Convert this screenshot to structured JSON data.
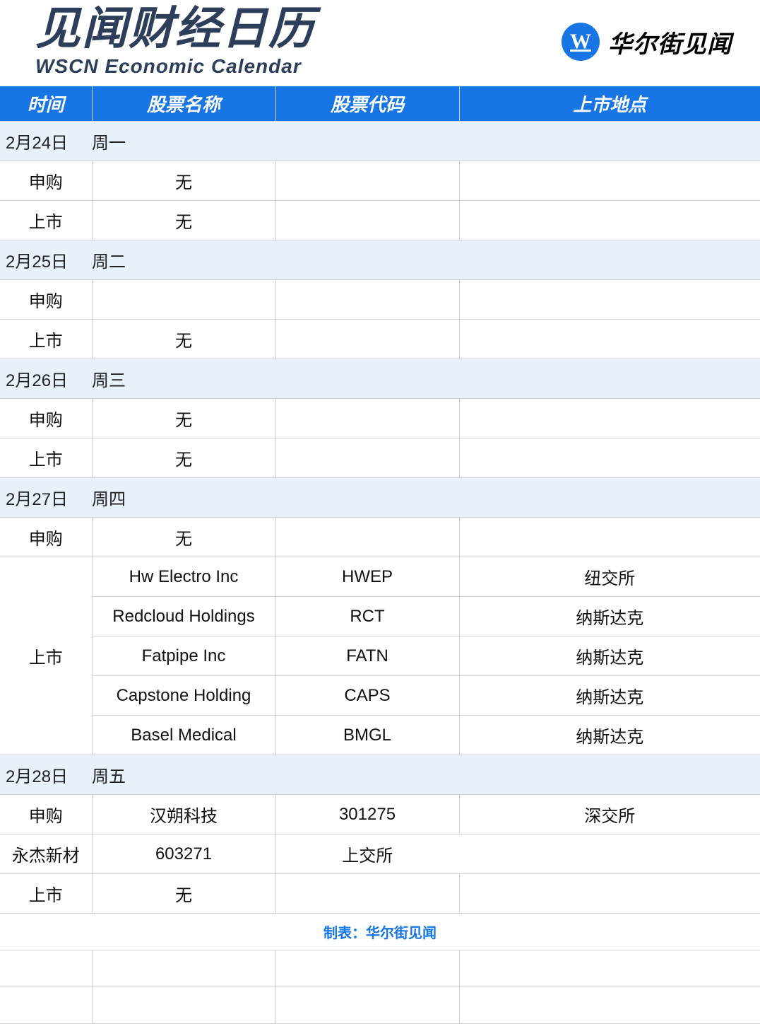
{
  "header": {
    "title_cn": "见闻财经日历",
    "title_en": "WSCN Economic Calendar",
    "brand": "华尔街见闻",
    "logo_letter": "W"
  },
  "columns": [
    "时间",
    "股票名称",
    "股票代码",
    "上市地点"
  ],
  "footer": "制表：华尔街见闻",
  "colors": {
    "header_bg": "#1775e5",
    "header_text": "#ffffff",
    "date_row_bg": "#e8f0fa",
    "border": "#d0d4da",
    "title": "#2d3e5a"
  },
  "days": [
    {
      "date": "2月24日",
      "weekday": "周一",
      "rows": [
        {
          "type": "申购",
          "name": "无",
          "code": "",
          "loc": ""
        },
        {
          "type": "上市",
          "name": "无",
          "code": "",
          "loc": ""
        }
      ]
    },
    {
      "date": "2月25日",
      "weekday": "周二",
      "rows": [
        {
          "type": "申购",
          "name": "",
          "code": "",
          "loc": ""
        },
        {
          "type": "上市",
          "name": "无",
          "code": "",
          "loc": ""
        }
      ]
    },
    {
      "date": "2月26日",
      "weekday": "周三",
      "rows": [
        {
          "type": "申购",
          "name": "无",
          "code": "",
          "loc": ""
        },
        {
          "type": "上市",
          "name": "无",
          "code": "",
          "loc": ""
        }
      ]
    },
    {
      "date": "2月27日",
      "weekday": "周四",
      "rows": [
        {
          "type": "申购",
          "name": "无",
          "code": "",
          "loc": ""
        },
        {
          "type": "上市",
          "name": "Hw Electro Inc",
          "code": "HWEP",
          "loc": "纽交所",
          "span": 5
        },
        {
          "type": "",
          "name": "Redcloud Holdings",
          "code": "RCT",
          "loc": "纳斯达克"
        },
        {
          "type": "",
          "name": "Fatpipe Inc",
          "code": "FATN",
          "loc": "纳斯达克"
        },
        {
          "type": "",
          "name": "Capstone Holding",
          "code": "CAPS",
          "loc": "纳斯达克"
        },
        {
          "type": "",
          "name": "Basel Medical",
          "code": "BMGL",
          "loc": "纳斯达克"
        }
      ]
    },
    {
      "date": "2月28日",
      "weekday": "周五",
      "rows": [
        {
          "type": "申购",
          "name": "汉朔科技",
          "code": "301275",
          "loc": "深交所"
        },
        {
          "type": "",
          "name": "永杰新材",
          "code": "603271",
          "loc": "上交所"
        },
        {
          "type": "上市",
          "name": "无",
          "code": "",
          "loc": ""
        }
      ]
    }
  ]
}
